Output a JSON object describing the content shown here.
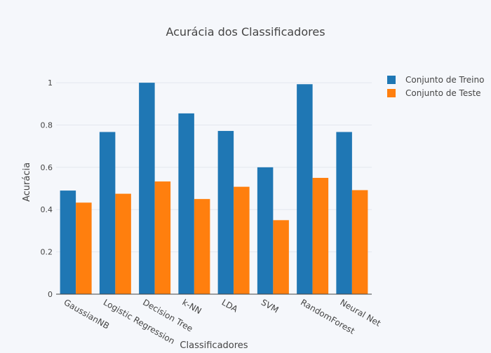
{
  "chart_data": {
    "type": "bar",
    "title": "Acurácia dos Classificadores",
    "xlabel": "Classificadores",
    "ylabel": "Acurácia",
    "categories": [
      "GaussianNB",
      "Logistic Regression",
      "Decision Tree",
      "k-NN",
      "LDA",
      "SVM",
      "RandomForest",
      "Neural Net"
    ],
    "series": [
      {
        "name": "Conjunto de Treino",
        "color": "#1f77b4",
        "values": [
          0.49,
          0.767,
          1.0,
          0.855,
          0.772,
          0.6,
          0.993,
          0.767
        ]
      },
      {
        "name": "Conjunto de Teste",
        "color": "#ff7f0e",
        "values": [
          0.433,
          0.475,
          0.533,
          0.45,
          0.508,
          0.35,
          0.55,
          0.492
        ]
      }
    ],
    "ylim": [
      0,
      1.06
    ],
    "yticks": [
      0,
      0.2,
      0.4,
      0.6,
      0.8,
      1
    ],
    "ytick_labels": [
      "0",
      "0.2",
      "0.4",
      "0.6",
      "0.8",
      "1"
    ],
    "grid": true,
    "legend": "top-right"
  }
}
